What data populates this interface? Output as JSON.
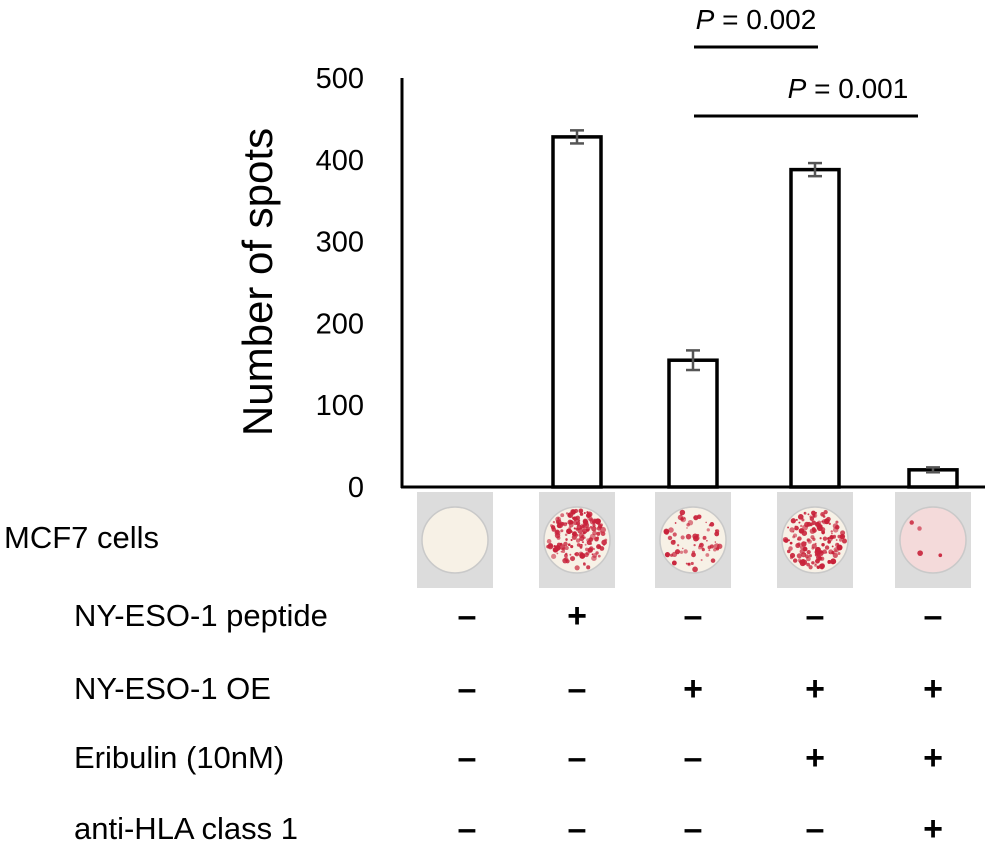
{
  "chart_data": {
    "type": "bar",
    "ylabel": "Number of spots",
    "ylim": [
      0,
      500
    ],
    "yticks": [
      "0",
      "100",
      "200",
      "300",
      "400",
      "500"
    ],
    "categories": [
      "1",
      "2",
      "3",
      "4",
      "5"
    ],
    "values": [
      0,
      428,
      155,
      388,
      21
    ],
    "errors": [
      0,
      8,
      12,
      8,
      3
    ],
    "bar_fill": "#ffffff",
    "bar_stroke": "#000000",
    "error_color": "#555555",
    "well_colors": {
      "background": "#dcdcdc",
      "empty": "#f7f1e6",
      "spot": "#c8223a",
      "faint": "#f4dada"
    },
    "significance": [
      {
        "label_italic": "P",
        "label_rest": " = 0.002",
        "from": 2,
        "to": 3
      },
      {
        "label_italic": "P",
        "label_rest": " = 0.001",
        "from": 2,
        "to": 4
      }
    ],
    "well_row_label": "MCF7 cells",
    "conditions": [
      {
        "label": "NY-ESO-1 peptide",
        "marks": [
          "–",
          "+",
          "–",
          "–",
          "–"
        ]
      },
      {
        "label": "NY-ESO-1 OE",
        "marks": [
          "–",
          "–",
          "+",
          "+",
          "+"
        ]
      },
      {
        "label": "Eribulin (10nM)",
        "marks": [
          "–",
          "–",
          "–",
          "+",
          "+"
        ]
      },
      {
        "label": "anti-HLA class 1",
        "marks": [
          "–",
          "–",
          "–",
          "–",
          "+"
        ]
      }
    ]
  }
}
